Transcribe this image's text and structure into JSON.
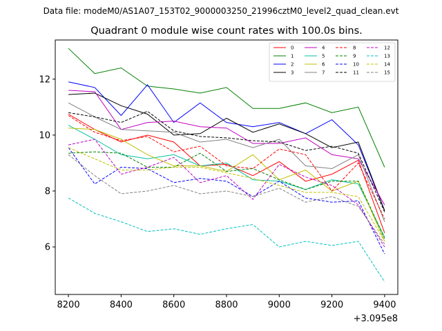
{
  "chart_data": {
    "type": "line",
    "suptitle": "Data file: modeM0/AS1A07_153T02_9000003250_21996cztM0_level2_quad_clean.evt",
    "title": "Quadrant 0 module wise count rates with 100.0s bins.",
    "xlabel": "",
    "ylabel": "",
    "x_offset_label": "+3.095e8",
    "x_ticks": [
      8200,
      8400,
      8600,
      8800,
      9000,
      9200,
      9400
    ],
    "x_tick_labels": [
      "8200",
      "8400",
      "8600",
      "8800",
      "9000",
      "9200",
      "9400"
    ],
    "y_ticks": [
      6,
      8,
      10,
      12
    ],
    "y_tick_labels": [
      "6",
      "8",
      "10",
      "12"
    ],
    "xlim": [
      8150,
      9450
    ],
    "ylim": [
      4.3,
      13.4
    ],
    "grid": false,
    "legend_position": "top-right",
    "x": [
      8200,
      8300,
      8400,
      8500,
      8600,
      8700,
      8800,
      8900,
      9000,
      9100,
      9200,
      9300,
      9400
    ],
    "series": [
      {
        "name": "0",
        "color": "#ff0000",
        "dash": false,
        "values": [
          10.75,
          10.2,
          9.75,
          10.0,
          9.75,
          8.9,
          8.95,
          8.55,
          9.05,
          8.35,
          8.6,
          9.1,
          6.5
        ]
      },
      {
        "name": "1",
        "color": "#008000",
        "dash": false,
        "values": [
          13.1,
          12.2,
          12.4,
          11.75,
          11.65,
          11.5,
          11.7,
          10.95,
          10.95,
          11.15,
          10.8,
          11.0,
          8.85
        ]
      },
      {
        "name": "2",
        "color": "#0000ff",
        "dash": false,
        "values": [
          11.9,
          11.7,
          10.7,
          11.8,
          10.45,
          11.15,
          10.45,
          10.3,
          10.45,
          10.05,
          10.55,
          9.65,
          7.3
        ]
      },
      {
        "name": "3",
        "color": "#000000",
        "dash": false,
        "values": [
          11.45,
          11.5,
          11.05,
          10.75,
          10.0,
          10.05,
          10.6,
          10.1,
          10.4,
          10.05,
          9.55,
          9.75,
          7.3
        ]
      },
      {
        "name": "4",
        "color": "#c000c0",
        "dash": false,
        "values": [
          11.6,
          11.55,
          10.2,
          10.45,
          10.5,
          10.3,
          10.25,
          9.7,
          9.7,
          9.9,
          9.3,
          9.15,
          7.5
        ]
      },
      {
        "name": "5",
        "color": "#00c0a0",
        "dash": false,
        "values": [
          10.35,
          9.85,
          9.3,
          9.15,
          9.3,
          8.9,
          9.0,
          8.4,
          8.35,
          8.05,
          8.4,
          8.25,
          6.35
        ]
      },
      {
        "name": "6",
        "color": "#c0c000",
        "dash": false,
        "values": [
          10.25,
          10.2,
          9.85,
          9.3,
          8.9,
          8.9,
          8.7,
          9.3,
          8.4,
          8.75,
          8.0,
          8.35,
          6.2
        ]
      },
      {
        "name": "7",
        "color": "#808080",
        "dash": false,
        "values": [
          11.15,
          10.65,
          10.2,
          10.15,
          10.1,
          9.75,
          9.85,
          9.55,
          9.85,
          8.9,
          8.8,
          9.3,
          6.9
        ]
      },
      {
        "name": "8",
        "color": "#ff0000",
        "dash": true,
        "values": [
          10.7,
          10.1,
          9.8,
          9.95,
          9.4,
          9.6,
          8.9,
          8.8,
          9.5,
          9.3,
          8.0,
          9.0,
          7.0
        ]
      },
      {
        "name": "9",
        "color": "#008000",
        "dash": true,
        "values": [
          9.35,
          9.4,
          9.35,
          8.85,
          8.85,
          9.35,
          8.7,
          8.8,
          8.4,
          8.05,
          8.35,
          8.35,
          6.3
        ]
      },
      {
        "name": "10",
        "color": "#0000ff",
        "dash": true,
        "values": [
          9.55,
          8.25,
          8.85,
          8.8,
          8.3,
          8.45,
          8.35,
          7.8,
          8.35,
          7.75,
          7.6,
          7.65,
          5.75
        ]
      },
      {
        "name": "11",
        "color": "#000000",
        "dash": true,
        "values": [
          10.8,
          10.65,
          10.45,
          10.85,
          10.15,
          9.95,
          9.9,
          9.8,
          9.75,
          9.45,
          9.6,
          9.35,
          7.25
        ]
      },
      {
        "name": "12",
        "color": "#c000c0",
        "dash": true,
        "values": [
          9.65,
          9.85,
          8.6,
          8.85,
          9.2,
          8.3,
          8.55,
          7.7,
          8.95,
          8.5,
          8.2,
          7.5,
          6.0
        ]
      },
      {
        "name": "13",
        "color": "#00c0c0",
        "dash": true,
        "values": [
          7.75,
          7.2,
          6.9,
          6.55,
          6.65,
          6.45,
          6.65,
          6.8,
          6.0,
          6.2,
          6.05,
          6.2,
          4.75
        ]
      },
      {
        "name": "14",
        "color": "#c0c000",
        "dash": true,
        "values": [
          9.55,
          9.15,
          8.75,
          8.75,
          8.85,
          8.85,
          8.65,
          8.45,
          8.2,
          7.95,
          7.95,
          7.8,
          6.2
        ]
      },
      {
        "name": "15",
        "color": "#808080",
        "dash": true,
        "values": [
          9.3,
          8.55,
          7.9,
          8.0,
          8.2,
          7.9,
          8.0,
          7.8,
          8.1,
          7.6,
          7.8,
          7.45,
          6.1
        ]
      }
    ]
  }
}
